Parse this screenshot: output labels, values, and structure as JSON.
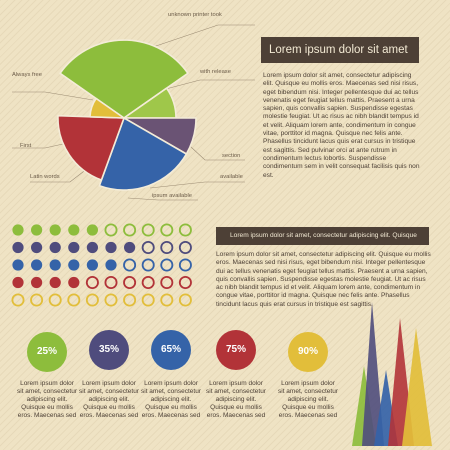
{
  "colors": {
    "green": "#8dbd3c",
    "light_green": "#9fc74a",
    "red": "#b23338",
    "purple": "#6a5374",
    "blue": "#3563a8",
    "yellow": "#e2be3a",
    "navy": "#4f4c7d",
    "dark_box": "#4d4036",
    "background": "#efe3c4"
  },
  "pie": {
    "labels": {
      "unknown_printer": "unknown printer took",
      "always_free": "Always free",
      "with_release": "with release",
      "first": "First",
      "section": "section",
      "latin_words": "Latin words",
      "available": "available",
      "ipsum_available": "ipsum available"
    }
  },
  "header": {
    "title": "Lorem ipsum dolor sit amet"
  },
  "paragraph_top": "Lorem ipsum dolor sit amet, consectetur adipiscing elit. Quisque eu mollis eros. Maecenas sed nisi risus, eget bibendum nisi. Integer pellentesque dui ac tellus venenatis eget feugiat tellus mattis. Praesent a urna sapien, quis convallis sapien. Suspendisse egestas molestie feugiat. Ut ac risus ac nibh blandit tempus id et velit. Aliquam lorem ante, condimentum in congue vitae, porttitor id magna. Quisque nec felis ante. Phasellus tincidunt lacus quis erat cursus in tristique est sagittis. Sed pulvinar orci at ante rutrum in condimentum lectus lobortis. Suspendisse condimentum sem in velit consequat facilisis quis non est.",
  "subheader": "Lorem ipsum dolor sit amet, consectetur adipiscing elit. Quisque",
  "paragraph_mid": "Lorem ipsum dolor sit amet, consectetur adipiscing elit. Quisque eu mollis eros. Maecenas sed nisi risus, eget bibendum nisi. Integer pellentesque dui ac tellus venenatis eget feugiat tellus mattis. Praesent a urna sapien, quis convallis sapien. Suspendisse egestas molestie feugiat. Ut ac risus ac nibh blandit tempus id et velit. Aliquam lorem ante, condimentum in congue vitae, porttitor id magna. Quisque nec felis ante. Phasellus tincidunt lacus quis erat cursus in tristique est sagittis.",
  "dot_rows": [
    {
      "color": "#8dbd3c",
      "filled": 5
    },
    {
      "color": "#4f4c7d",
      "filled": 7
    },
    {
      "color": "#3563a8",
      "filled": 6
    },
    {
      "color": "#b23338",
      "filled": 4
    },
    {
      "color": "#e2be3a",
      "filled": 0
    }
  ],
  "stats": [
    {
      "percent": "25%",
      "color": "#8dbd3c",
      "text": "Lorem ipsum dolor sit amet, consectetur adipiscing elit. Quisque eu mollis eros. Maecenas sed"
    },
    {
      "percent": "35%",
      "color": "#4f4c7d",
      "text": "Lorem ipsum dolor sit amet, consectetur adipiscing elit. Quisque eu mollis eros. Maecenas sed"
    },
    {
      "percent": "65%",
      "color": "#3563a8",
      "text": "Lorem ipsum dolor sit amet, consectetur adipiscing elit. Quisque eu mollis eros. Maecenas sed"
    },
    {
      "percent": "75%",
      "color": "#b23338",
      "text": "Lorem ipsum dolor sit amet, consectetur adipiscing elit. Quisque eu mollis eros. Maecenas sed"
    },
    {
      "percent": "90%",
      "color": "#e2be3a",
      "text": "Lorem ipsum dolor sit amet, consectetur adipiscing elit. Quisque eu mollis eros. Maecenas sed"
    }
  ]
}
